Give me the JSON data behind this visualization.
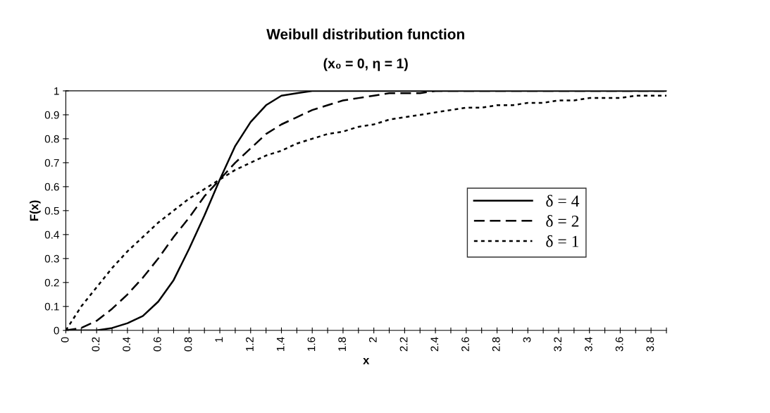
{
  "chart_data": {
    "type": "line",
    "title": "Weibull distribution function",
    "subtitle": "(x₀ = 0, η = 1)",
    "xlabel": "x",
    "ylabel": "F(x)",
    "x": [
      0,
      0.1,
      0.2,
      0.3,
      0.4,
      0.5,
      0.6,
      0.7,
      0.8,
      0.9,
      1,
      1.1,
      1.2,
      1.3,
      1.4,
      1.5,
      1.6,
      1.7,
      1.8,
      1.9,
      2,
      2.1,
      2.2,
      2.3,
      2.4,
      2.5,
      2.6,
      2.7,
      2.8,
      2.9,
      3,
      3.1,
      3.2,
      3.3,
      3.4,
      3.5,
      3.6,
      3.7,
      3.8,
      3.9
    ],
    "series": [
      {
        "name": "δ = 4",
        "color": "#000000",
        "line_style": "solid",
        "values": [
          0,
          0,
          0,
          0.01,
          0.03,
          0.06,
          0.12,
          0.21,
          0.34,
          0.48,
          0.63,
          0.77,
          0.87,
          0.94,
          0.98,
          0.99,
          1,
          1,
          1,
          1,
          1,
          1,
          1,
          1,
          1,
          1,
          1,
          1,
          1,
          1,
          1,
          1,
          1,
          1,
          1,
          1,
          1,
          1,
          1,
          1
        ]
      },
      {
        "name": "δ = 2",
        "color": "#000000",
        "line_style": "dashed",
        "values": [
          0,
          0.01,
          0.04,
          0.09,
          0.15,
          0.22,
          0.3,
          0.39,
          0.47,
          0.56,
          0.63,
          0.7,
          0.76,
          0.82,
          0.86,
          0.89,
          0.92,
          0.94,
          0.96,
          0.97,
          0.98,
          0.99,
          0.99,
          0.99,
          1,
          1,
          1,
          1,
          1,
          1,
          1,
          1,
          1,
          1,
          1,
          1,
          1,
          1,
          1,
          1
        ]
      },
      {
        "name": "δ = 1",
        "color": "#000000",
        "line_style": "dotted",
        "values": [
          0,
          0.1,
          0.18,
          0.26,
          0.33,
          0.39,
          0.45,
          0.5,
          0.55,
          0.59,
          0.63,
          0.67,
          0.7,
          0.73,
          0.75,
          0.78,
          0.8,
          0.82,
          0.83,
          0.85,
          0.86,
          0.88,
          0.89,
          0.9,
          0.91,
          0.92,
          0.93,
          0.93,
          0.94,
          0.94,
          0.95,
          0.95,
          0.96,
          0.96,
          0.97,
          0.97,
          0.97,
          0.98,
          0.98,
          0.98
        ]
      }
    ],
    "xlim": [
      0,
      3.9
    ],
    "xticks": [
      0,
      {
        "value": 0.1,
        "label": null
      },
      0.2,
      {
        "value": 0.3,
        "label": null
      },
      0.4,
      {
        "value": 0.5,
        "label": null
      },
      0.6,
      {
        "value": 0.7,
        "label": null
      },
      0.8,
      {
        "value": 0.9,
        "label": null
      },
      1,
      {
        "value": 1.1,
        "label": null
      },
      1.2,
      {
        "value": 1.3,
        "label": null
      },
      1.4,
      {
        "value": 1.5,
        "label": null
      },
      1.6,
      {
        "value": 1.7,
        "label": null
      },
      1.8,
      {
        "value": 1.9,
        "label": null
      },
      2,
      {
        "value": 2.1,
        "label": null
      },
      2.2,
      {
        "value": 2.3,
        "label": null
      },
      2.4,
      {
        "value": 2.5,
        "label": null
      },
      2.6,
      {
        "value": 2.7,
        "label": null
      },
      2.8,
      {
        "value": 2.9,
        "label": null
      },
      3,
      {
        "value": 3.1,
        "label": null
      },
      3.2,
      {
        "value": 3.3,
        "label": null
      },
      3.4,
      {
        "value": 3.5,
        "label": null
      },
      3.6,
      {
        "value": 3.7,
        "label": null
      },
      3.8,
      {
        "value": 3.9,
        "label": null
      }
    ],
    "ylim": [
      0,
      1
    ],
    "yticks": [
      0,
      0.1,
      0.2,
      0.3,
      0.4,
      0.5,
      0.6,
      0.7,
      0.8,
      0.9,
      1
    ],
    "grid": false,
    "legend": "right",
    "marker": "none"
  }
}
